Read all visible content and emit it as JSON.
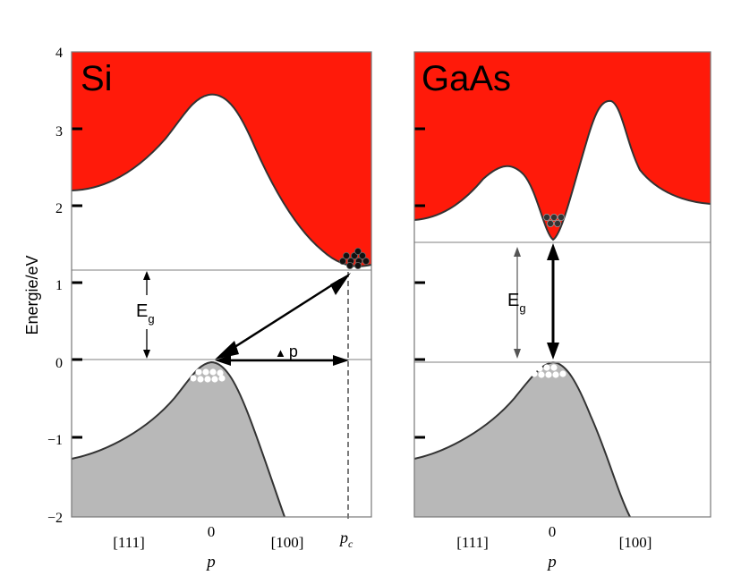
{
  "y_axis": {
    "label": "Energie/eV",
    "ticks": [
      "4",
      "3",
      "2",
      "1",
      "0",
      "−1",
      "−2"
    ]
  },
  "panels": [
    {
      "material": "Si",
      "gap_label_main": "E",
      "gap_label_sub": "g",
      "momentum_label_delta": "▲",
      "momentum_label_p": "p",
      "x_ticks": {
        "left": "[111]",
        "center": "0",
        "right": "[100]",
        "extra": "p",
        "extra_sub": "c"
      },
      "x_label": "p"
    },
    {
      "material": "GaAs",
      "gap_label_main": "E",
      "gap_label_sub": "g",
      "x_ticks": {
        "left": "[111]",
        "center": "0",
        "right": "[100]"
      },
      "x_label": "p"
    }
  ],
  "colors": {
    "conduction_band": "#ff1a0a",
    "valence_band": "#b8b8b8",
    "electron": "#111111",
    "hole": "#ffffff",
    "gap_line": "#aaaaaa"
  }
}
